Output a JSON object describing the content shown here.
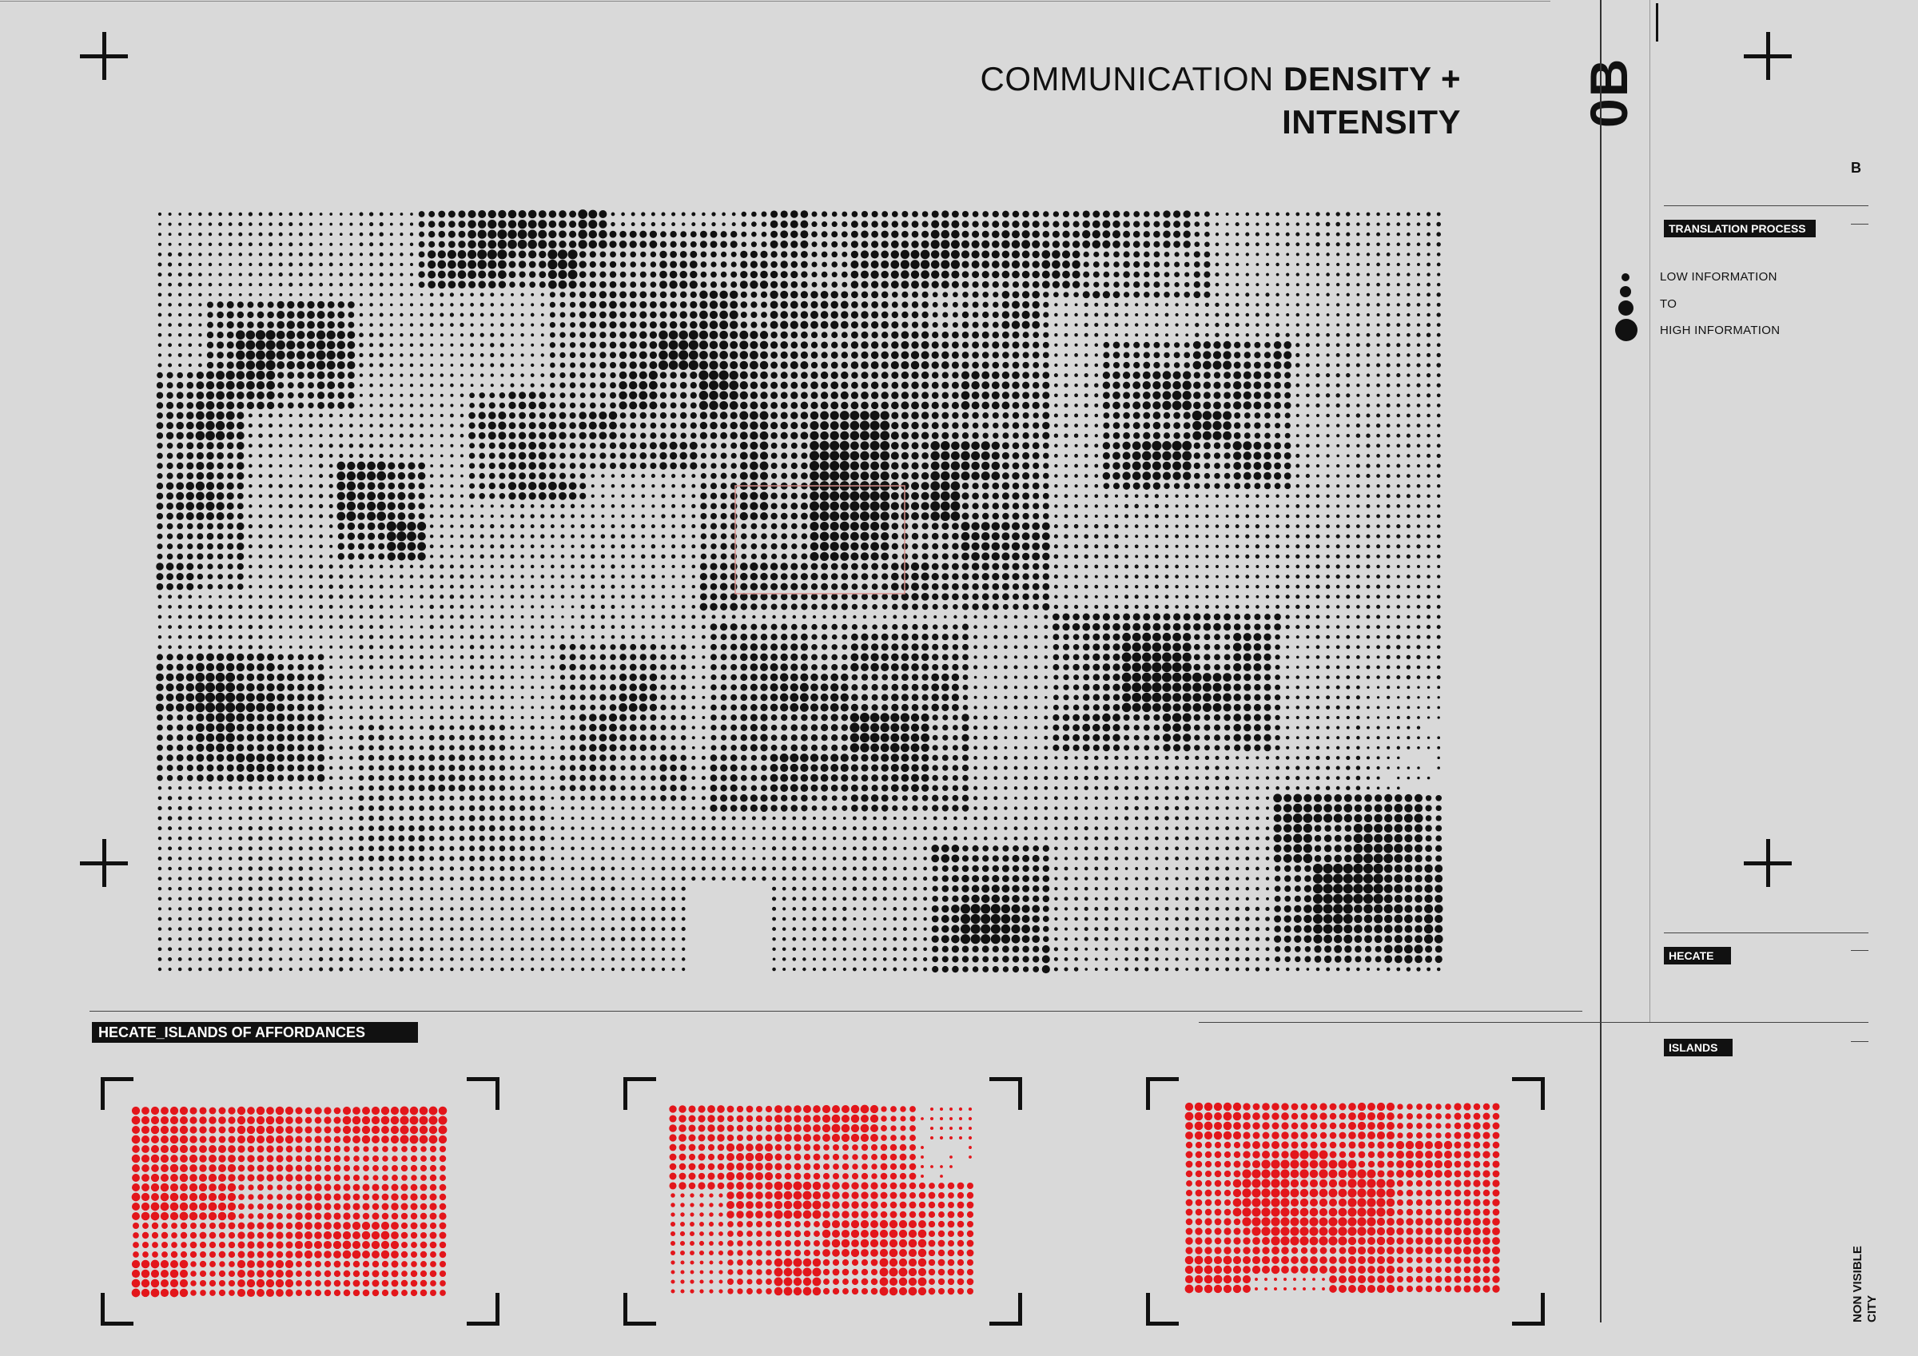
{
  "header": {
    "title_light": "COMMUNICATION",
    "title_bold_1": "DENSITY +",
    "title_bold_2": "INTENSITY",
    "sheet_code": "0B"
  },
  "sidebar": {
    "section_letter": "B",
    "translation_tag": "TRANSLATION PROCESS",
    "legend": {
      "low": "LOW INFORMATION",
      "to": "TO",
      "high": "HIGH INFORMATION"
    },
    "hecate_tag": "HECATE",
    "islands_tag": "ISLANDS",
    "footer_line1": "NON VISIBLE",
    "footer_line2": "CITY"
  },
  "islands": {
    "heading": "HECATE_ISLANDS OF AFFORDANCES",
    "count": 3
  },
  "colors": {
    "background": "#d9d9d9",
    "ink": "#111111",
    "island_red": "#e3161b",
    "highlight_red": "#d9908c"
  }
}
